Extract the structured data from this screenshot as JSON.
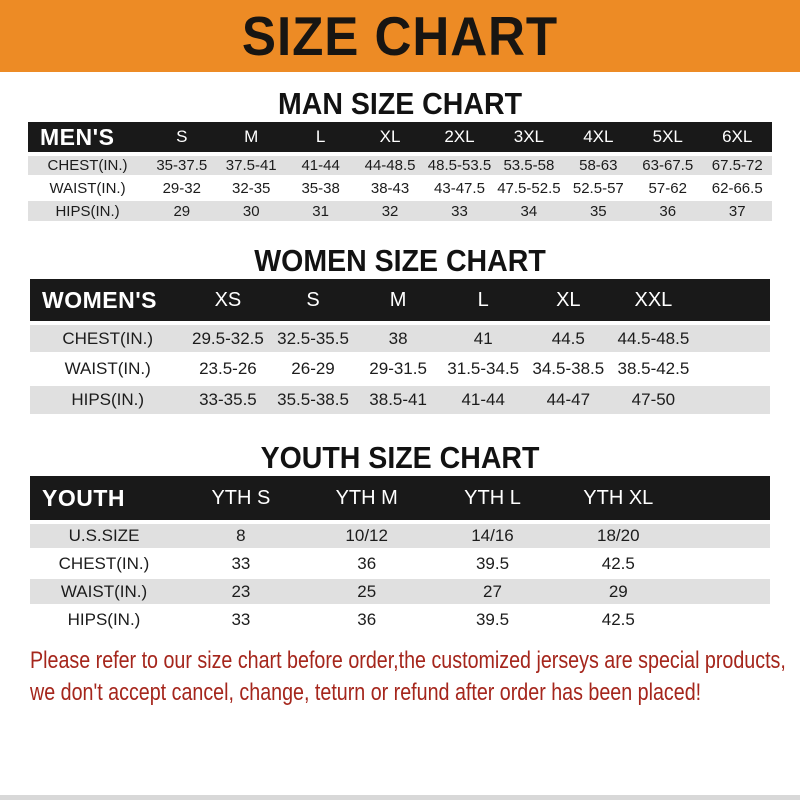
{
  "banner": {
    "title": "SIZE CHART"
  },
  "man": {
    "title": "MAN SIZE CHART",
    "corner": "MEN'S",
    "cols": [
      "S",
      "M",
      "L",
      "XL",
      "2XL",
      "3XL",
      "4XL",
      "5XL",
      "6XL"
    ],
    "chest": {
      "label": "CHEST(IN.)",
      "v": [
        "35-37.5",
        "37.5-41",
        "41-44",
        "44-48.5",
        "48.5-53.5",
        "53.5-58",
        "58-63",
        "63-67.5",
        "67.5-72"
      ]
    },
    "waist": {
      "label": "WAIST(IN.)",
      "v": [
        "29-32",
        "32-35",
        "35-38",
        "38-43",
        "43-47.5",
        "47.5-52.5",
        "52.5-57",
        "57-62",
        "62-66.5"
      ]
    },
    "hips": {
      "label": "HIPS(IN.)",
      "v": [
        "29",
        "30",
        "31",
        "32",
        "33",
        "34",
        "35",
        "36",
        "37"
      ]
    }
  },
  "women": {
    "title": "WOMEN SIZE CHART",
    "corner": "WOMEN'S",
    "cols": [
      "XS",
      "S",
      "M",
      "L",
      "XL",
      "XXL"
    ],
    "chest": {
      "label": "CHEST(IN.)",
      "v": [
        "29.5-32.5",
        "32.5-35.5",
        "38",
        "41",
        "44.5",
        "44.5-48.5"
      ]
    },
    "waist": {
      "label": "WAIST(IN.)",
      "v": [
        "23.5-26",
        "26-29",
        "29-31.5",
        "31.5-34.5",
        "34.5-38.5",
        "38.5-42.5"
      ]
    },
    "hips": {
      "label": "HIPS(IN.)",
      "v": [
        "33-35.5",
        "35.5-38.5",
        "38.5-41",
        "41-44",
        "44-47",
        "47-50"
      ]
    }
  },
  "youth": {
    "title": "YOUTH SIZE CHART",
    "corner": "YOUTH",
    "cols": [
      "YTH S",
      "YTH M",
      "YTH L",
      "YTH XL"
    ],
    "ussize": {
      "label": "U.S.SIZE",
      "v": [
        "8",
        "10/12",
        "14/16",
        "18/20"
      ]
    },
    "chest": {
      "label": "CHEST(IN.)",
      "v": [
        "33",
        "36",
        "39.5",
        "42.5"
      ]
    },
    "waist": {
      "label": "WAIST(IN.)",
      "v": [
        "23",
        "25",
        "27",
        "29"
      ]
    },
    "hips": {
      "label": "HIPS(IN.)",
      "v": [
        "33",
        "36",
        "39.5",
        "42.5"
      ]
    }
  },
  "footer": {
    "line1": "Please refer to our size chart before order,the customized jerseys are special products,",
    "line2": "we don't accept cancel, change, teturn or refund after order has been placed!"
  },
  "colors": {
    "banner_bg": "#ED8B25",
    "bar_bg": "#191919",
    "row_alt": "#E0E0E0",
    "footer_red": "#A5261C"
  }
}
